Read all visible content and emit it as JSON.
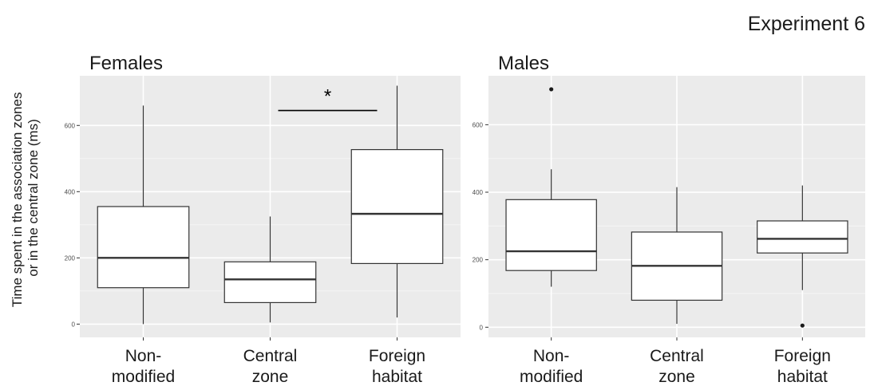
{
  "figure": {
    "title": "Experiment 6",
    "ylabel_lines": [
      "Time spent in the association zones",
      "or in the central zone (ms)"
    ]
  },
  "chart_data": [
    {
      "type": "boxplot",
      "title": "Females",
      "categories": [
        "Non-\nmodified",
        "Central\nzone",
        "Foreign\nhabitat"
      ],
      "ylim": [
        -40,
        750
      ],
      "yticks": [
        0,
        200,
        400,
        600
      ],
      "grid": true,
      "boxes": [
        {
          "category": "Non-modified",
          "whisker_low": 0,
          "q1": 110,
          "median": 200,
          "q3": 355,
          "whisker_high": 660,
          "outliers": []
        },
        {
          "category": "Central zone",
          "whisker_low": 5,
          "q1": 65,
          "median": 135,
          "q3": 188,
          "whisker_high": 325,
          "outliers": []
        },
        {
          "category": "Foreign habitat",
          "whisker_low": 20,
          "q1": 183,
          "median": 333,
          "q3": 527,
          "whisker_high": 720,
          "outliers": []
        }
      ],
      "annotations": [
        {
          "type": "significance",
          "label": "*",
          "from": "Central zone",
          "to": "Foreign habitat",
          "y": 645
        }
      ]
    },
    {
      "type": "boxplot",
      "title": "Males",
      "categories": [
        "Non-\nmodified",
        "Central\nzone",
        "Foreign\nhabitat"
      ],
      "ylim": [
        -30,
        745
      ],
      "yticks": [
        0,
        200,
        400,
        600
      ],
      "grid": true,
      "boxes": [
        {
          "category": "Non-modified",
          "whisker_low": 120,
          "q1": 168,
          "median": 225,
          "q3": 378,
          "whisker_high": 468,
          "outliers": [
            705
          ]
        },
        {
          "category": "Central zone",
          "whisker_low": 10,
          "q1": 80,
          "median": 182,
          "q3": 282,
          "whisker_high": 415,
          "outliers": []
        },
        {
          "category": "Foreign habitat",
          "whisker_low": 110,
          "q1": 220,
          "median": 262,
          "q3": 315,
          "whisker_high": 420,
          "outliers": [
            5
          ]
        }
      ],
      "annotations": []
    }
  ]
}
